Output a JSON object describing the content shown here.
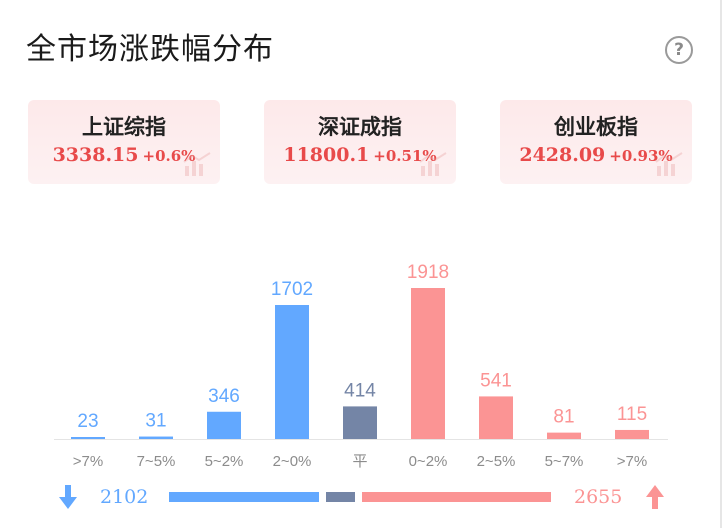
{
  "title": "全市场涨跌幅分布",
  "help_icon": "question-icon",
  "indices": [
    {
      "name": "上证综指",
      "value": "3338.15",
      "change": "+0.6%"
    },
    {
      "name": "深证成指",
      "value": "11800.1",
      "change": "+0.51%"
    },
    {
      "name": "创业板指",
      "value": "2428.09",
      "change": "+0.93%"
    }
  ],
  "colors": {
    "down": "#62a8ff",
    "flat": "#7485a6",
    "up": "#fb9494",
    "index_text": "#e84a4a"
  },
  "chart_data": {
    "type": "bar",
    "categories": [
      ">7%",
      "7~5%",
      "5~2%",
      "2~0%",
      "平",
      "0~2%",
      "2~5%",
      "5~7%",
      ">7%"
    ],
    "values": [
      23,
      31,
      346,
      1702,
      414,
      1918,
      541,
      81,
      115
    ],
    "value_labels": [
      "23",
      "31",
      "346",
      "1702",
      "414",
      "1918",
      "541",
      "81",
      "115"
    ],
    "groups": [
      "down",
      "down",
      "down",
      "down",
      "flat",
      "up",
      "up",
      "up",
      "up"
    ],
    "title": "",
    "xlabel": "",
    "ylabel": "",
    "ylim": [
      0,
      1918
    ],
    "grid": false
  },
  "summary": {
    "down_count": "2102",
    "up_count": "2655",
    "down_icon": "arrow-down-icon",
    "up_icon": "arrow-up-icon",
    "down": 2102,
    "flat": 414,
    "up": 2655
  }
}
